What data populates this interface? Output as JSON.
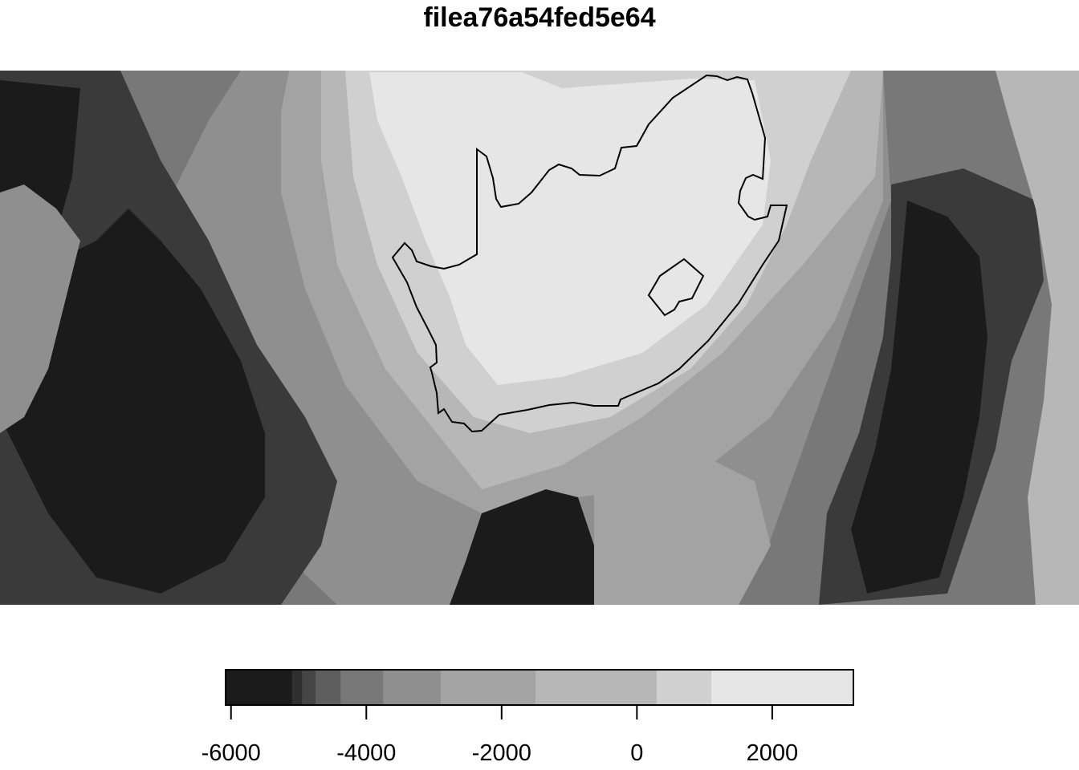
{
  "title": "filea76a54fed5e64",
  "legend": {
    "ticks": [
      {
        "value": -6000,
        "label": "-6000"
      },
      {
        "value": -4000,
        "label": "-4000"
      },
      {
        "value": -2000,
        "label": "-2000"
      },
      {
        "value": 0,
        "label": "0"
      },
      {
        "value": 2000,
        "label": "2000"
      }
    ],
    "range": [
      -6080,
      3200
    ],
    "breaks": [
      {
        "from": -6080,
        "to": -5100,
        "color": "#1b1b1b"
      },
      {
        "from": -5100,
        "to": -4950,
        "color": "#2f2f2f"
      },
      {
        "from": -4950,
        "to": -4750,
        "color": "#454545"
      },
      {
        "from": -4750,
        "to": -4380,
        "color": "#5e5e5e"
      },
      {
        "from": -4380,
        "to": -3750,
        "color": "#787878"
      },
      {
        "from": -3750,
        "to": -2900,
        "color": "#8f8f8f"
      },
      {
        "from": -2900,
        "to": -1500,
        "color": "#a3a3a3"
      },
      {
        "from": -1500,
        "to": 290,
        "color": "#b7b7b7"
      },
      {
        "from": 290,
        "to": 1100,
        "color": "#d0d0d0"
      },
      {
        "from": 1100,
        "to": 3200,
        "color": "#e6e6e6"
      }
    ]
  },
  "map": {
    "palette": {
      "deep": "#1b1b1b",
      "dark": "#3a3a3a",
      "mid_dark": "#5e5e5e",
      "mid": "#787878",
      "mid_light": "#8f8f8f",
      "light": "#a3a3a3",
      "shelf": "#b7b7b7",
      "low_land": "#d0d0d0",
      "high_land": "#e6e6e6"
    }
  }
}
